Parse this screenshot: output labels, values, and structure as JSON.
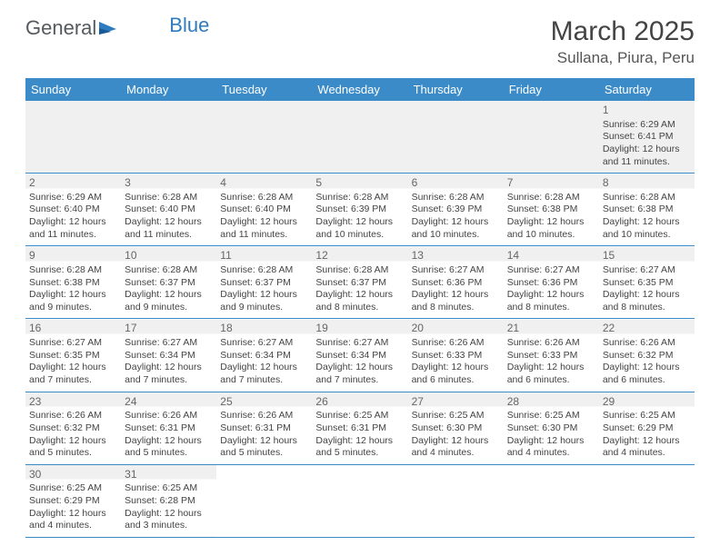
{
  "logo": {
    "text1": "General",
    "text2": "Blue"
  },
  "title": "March 2025",
  "location": "Sullana, Piura, Peru",
  "colors": {
    "header_bg": "#3b8bc9",
    "header_text": "#ffffff",
    "rule": "#3b8bc9",
    "shade": "#f0f0f0",
    "text": "#444444"
  },
  "day_headers": [
    "Sunday",
    "Monday",
    "Tuesday",
    "Wednesday",
    "Thursday",
    "Friday",
    "Saturday"
  ],
  "weeks": [
    [
      null,
      null,
      null,
      null,
      null,
      null,
      {
        "n": "1",
        "sunrise": "Sunrise: 6:29 AM",
        "sunset": "Sunset: 6:41 PM",
        "daylight": "Daylight: 12 hours and 11 minutes."
      }
    ],
    [
      {
        "n": "2",
        "sunrise": "Sunrise: 6:29 AM",
        "sunset": "Sunset: 6:40 PM",
        "daylight": "Daylight: 12 hours and 11 minutes."
      },
      {
        "n": "3",
        "sunrise": "Sunrise: 6:28 AM",
        "sunset": "Sunset: 6:40 PM",
        "daylight": "Daylight: 12 hours and 11 minutes."
      },
      {
        "n": "4",
        "sunrise": "Sunrise: 6:28 AM",
        "sunset": "Sunset: 6:40 PM",
        "daylight": "Daylight: 12 hours and 11 minutes."
      },
      {
        "n": "5",
        "sunrise": "Sunrise: 6:28 AM",
        "sunset": "Sunset: 6:39 PM",
        "daylight": "Daylight: 12 hours and 10 minutes."
      },
      {
        "n": "6",
        "sunrise": "Sunrise: 6:28 AM",
        "sunset": "Sunset: 6:39 PM",
        "daylight": "Daylight: 12 hours and 10 minutes."
      },
      {
        "n": "7",
        "sunrise": "Sunrise: 6:28 AM",
        "sunset": "Sunset: 6:38 PM",
        "daylight": "Daylight: 12 hours and 10 minutes."
      },
      {
        "n": "8",
        "sunrise": "Sunrise: 6:28 AM",
        "sunset": "Sunset: 6:38 PM",
        "daylight": "Daylight: 12 hours and 10 minutes."
      }
    ],
    [
      {
        "n": "9",
        "sunrise": "Sunrise: 6:28 AM",
        "sunset": "Sunset: 6:38 PM",
        "daylight": "Daylight: 12 hours and 9 minutes."
      },
      {
        "n": "10",
        "sunrise": "Sunrise: 6:28 AM",
        "sunset": "Sunset: 6:37 PM",
        "daylight": "Daylight: 12 hours and 9 minutes."
      },
      {
        "n": "11",
        "sunrise": "Sunrise: 6:28 AM",
        "sunset": "Sunset: 6:37 PM",
        "daylight": "Daylight: 12 hours and 9 minutes."
      },
      {
        "n": "12",
        "sunrise": "Sunrise: 6:28 AM",
        "sunset": "Sunset: 6:37 PM",
        "daylight": "Daylight: 12 hours and 8 minutes."
      },
      {
        "n": "13",
        "sunrise": "Sunrise: 6:27 AM",
        "sunset": "Sunset: 6:36 PM",
        "daylight": "Daylight: 12 hours and 8 minutes."
      },
      {
        "n": "14",
        "sunrise": "Sunrise: 6:27 AM",
        "sunset": "Sunset: 6:36 PM",
        "daylight": "Daylight: 12 hours and 8 minutes."
      },
      {
        "n": "15",
        "sunrise": "Sunrise: 6:27 AM",
        "sunset": "Sunset: 6:35 PM",
        "daylight": "Daylight: 12 hours and 8 minutes."
      }
    ],
    [
      {
        "n": "16",
        "sunrise": "Sunrise: 6:27 AM",
        "sunset": "Sunset: 6:35 PM",
        "daylight": "Daylight: 12 hours and 7 minutes."
      },
      {
        "n": "17",
        "sunrise": "Sunrise: 6:27 AM",
        "sunset": "Sunset: 6:34 PM",
        "daylight": "Daylight: 12 hours and 7 minutes."
      },
      {
        "n": "18",
        "sunrise": "Sunrise: 6:27 AM",
        "sunset": "Sunset: 6:34 PM",
        "daylight": "Daylight: 12 hours and 7 minutes."
      },
      {
        "n": "19",
        "sunrise": "Sunrise: 6:27 AM",
        "sunset": "Sunset: 6:34 PM",
        "daylight": "Daylight: 12 hours and 7 minutes."
      },
      {
        "n": "20",
        "sunrise": "Sunrise: 6:26 AM",
        "sunset": "Sunset: 6:33 PM",
        "daylight": "Daylight: 12 hours and 6 minutes."
      },
      {
        "n": "21",
        "sunrise": "Sunrise: 6:26 AM",
        "sunset": "Sunset: 6:33 PM",
        "daylight": "Daylight: 12 hours and 6 minutes."
      },
      {
        "n": "22",
        "sunrise": "Sunrise: 6:26 AM",
        "sunset": "Sunset: 6:32 PM",
        "daylight": "Daylight: 12 hours and 6 minutes."
      }
    ],
    [
      {
        "n": "23",
        "sunrise": "Sunrise: 6:26 AM",
        "sunset": "Sunset: 6:32 PM",
        "daylight": "Daylight: 12 hours and 5 minutes."
      },
      {
        "n": "24",
        "sunrise": "Sunrise: 6:26 AM",
        "sunset": "Sunset: 6:31 PM",
        "daylight": "Daylight: 12 hours and 5 minutes."
      },
      {
        "n": "25",
        "sunrise": "Sunrise: 6:26 AM",
        "sunset": "Sunset: 6:31 PM",
        "daylight": "Daylight: 12 hours and 5 minutes."
      },
      {
        "n": "26",
        "sunrise": "Sunrise: 6:25 AM",
        "sunset": "Sunset: 6:31 PM",
        "daylight": "Daylight: 12 hours and 5 minutes."
      },
      {
        "n": "27",
        "sunrise": "Sunrise: 6:25 AM",
        "sunset": "Sunset: 6:30 PM",
        "daylight": "Daylight: 12 hours and 4 minutes."
      },
      {
        "n": "28",
        "sunrise": "Sunrise: 6:25 AM",
        "sunset": "Sunset: 6:30 PM",
        "daylight": "Daylight: 12 hours and 4 minutes."
      },
      {
        "n": "29",
        "sunrise": "Sunrise: 6:25 AM",
        "sunset": "Sunset: 6:29 PM",
        "daylight": "Daylight: 12 hours and 4 minutes."
      }
    ],
    [
      {
        "n": "30",
        "sunrise": "Sunrise: 6:25 AM",
        "sunset": "Sunset: 6:29 PM",
        "daylight": "Daylight: 12 hours and 4 minutes."
      },
      {
        "n": "31",
        "sunrise": "Sunrise: 6:25 AM",
        "sunset": "Sunset: 6:28 PM",
        "daylight": "Daylight: 12 hours and 3 minutes."
      },
      null,
      null,
      null,
      null,
      null
    ]
  ]
}
